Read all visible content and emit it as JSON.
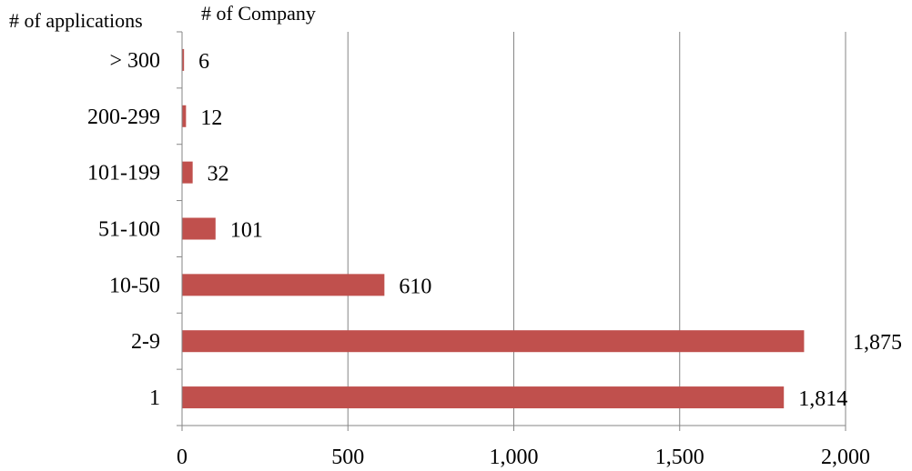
{
  "chart_data": {
    "type": "bar",
    "orientation": "horizontal",
    "ylabel": "# of applications",
    "xlabel": "# of Company",
    "categories": [
      "1",
      "2-9",
      "10-50",
      "51-100",
      "101-199",
      "200-299",
      "> 300"
    ],
    "values": [
      1814,
      1875,
      610,
      101,
      32,
      12,
      6
    ],
    "data_labels": [
      "1,814",
      "1,875",
      "610",
      "101",
      "32",
      "12",
      "6"
    ],
    "xlim": [
      0,
      2000
    ],
    "xticks": [
      0,
      500,
      1000,
      1500,
      2000
    ],
    "xtick_labels": [
      "0",
      "500",
      "1,000",
      "1,500",
      "2,000"
    ],
    "grid": "vertical",
    "colors": {
      "bar": "#c0504d",
      "grid": "#868686",
      "axis": "#868686"
    }
  }
}
